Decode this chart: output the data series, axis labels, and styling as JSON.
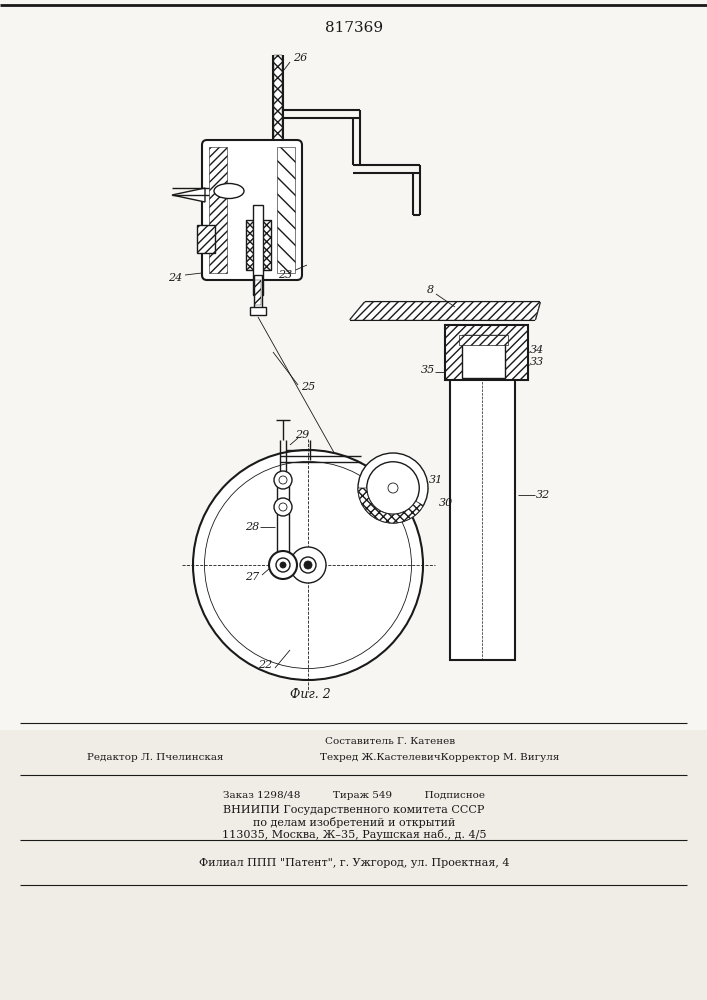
{
  "title": "817369",
  "fig_label": "Фиг. 2",
  "bg_color": "#f0ece6",
  "line_color": "#1a1a1a",
  "editor_line": "Редактор Л. Пчелинская",
  "tech_line": "Техред Ж.КастелевичКорректор М. Вигуля",
  "composer_line": "Составитель Г. Катенев",
  "order_line": "Заказ 1298/48          Тираж 549          Подписное",
  "vniiipi_line": "ВНИИПИ Государственного комитета СССР",
  "affairs_line": "по делам изобретений и открытий",
  "address_line": "113035, Москва, Ж–35, Раушская наб., д. 4/5",
  "filial_line": "Филиал ППП \"Патент\", г. Ужгород, ул. Проектная, 4",
  "drawing_bg": "#f8f6f2"
}
